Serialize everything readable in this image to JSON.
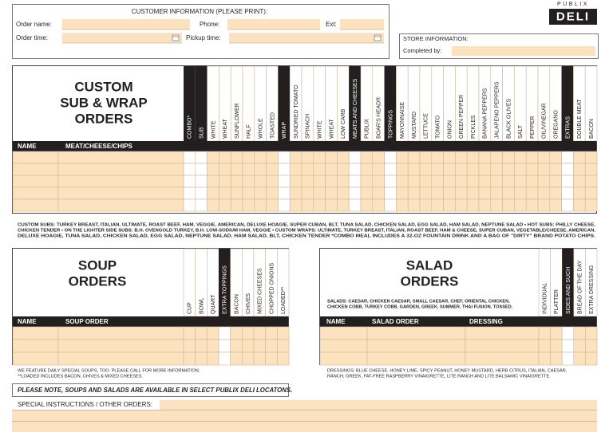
{
  "customer": {
    "title": "CUSTOMER INFORMATION (PLEASE PRINT):",
    "fields": [
      "Order name:",
      "Phone:",
      "Ext:",
      "Order time:",
      "Pickup time:"
    ]
  },
  "logo": {
    "brand": "PUBLIX",
    "name": "DELI"
  },
  "store": {
    "title": "STORE INFORMATION:",
    "completed_by": "Completed by:"
  },
  "sub_orders": {
    "title": [
      "CUSTOM",
      "SUB & WRAP",
      "ORDERS"
    ],
    "row_headers": [
      "NAME",
      "MEAT/CHEESE/CHIPS"
    ],
    "columns": [
      {
        "label": "COMBO*",
        "style": "dark"
      },
      {
        "label": "SUB",
        "style": "dark"
      },
      {
        "label": "WHITE",
        "style": "light"
      },
      {
        "label": "WHEAT",
        "style": "light"
      },
      {
        "label": "SUNFLOWER",
        "style": "light"
      },
      {
        "label": "HALF",
        "style": "light"
      },
      {
        "label": "WHOLE",
        "style": "light"
      },
      {
        "label": "TOASTED",
        "style": "light"
      },
      {
        "label": "WRAP",
        "style": "dark"
      },
      {
        "label": "SUNDRIED TOMATO",
        "style": "light"
      },
      {
        "label": "SPINACH",
        "style": "light"
      },
      {
        "label": "WHITE",
        "style": "light"
      },
      {
        "label": "WHEAT",
        "style": "light"
      },
      {
        "label": "LOW CARB",
        "style": "light"
      },
      {
        "label": "MEATS AND CHEESES",
        "style": "dark"
      },
      {
        "label": "PUBLIX",
        "style": "light"
      },
      {
        "label": "BOAR'S HEAD®",
        "style": "light"
      },
      {
        "label": "TOPPINGS",
        "style": "dark"
      },
      {
        "label": "MAYONNAISE",
        "style": "light"
      },
      {
        "label": "MUSTARD",
        "style": "light"
      },
      {
        "label": "LETTUCE",
        "style": "light"
      },
      {
        "label": "TOMATO",
        "style": "light"
      },
      {
        "label": "ONION",
        "style": "light"
      },
      {
        "label": "GREEN PEPPER",
        "style": "light"
      },
      {
        "label": "PICKLES",
        "style": "light"
      },
      {
        "label": "BANANA PEPPERS",
        "style": "light"
      },
      {
        "label": "JALAPENO PEPPERS",
        "style": "light"
      },
      {
        "label": "BLACK OLIVES",
        "style": "light"
      },
      {
        "label": "SALT",
        "style": "light"
      },
      {
        "label": "PEPPER",
        "style": "light"
      },
      {
        "label": "OIL/VINEGAR",
        "style": "light"
      },
      {
        "label": "OREGANO",
        "style": "light"
      },
      {
        "label": "EXTRAS",
        "style": "dark"
      },
      {
        "label": "DOUBLE MEAT",
        "style": "light"
      },
      {
        "label": "BACON",
        "style": "light"
      }
    ],
    "notes": [
      "CUSTOM SUBS: TURKEY BREAST, ITALIAN, ULTIMATE, ROAST BEEF, HAM, VEGGIE, AMERICAN, DELUXE HOAGIE, SUPER CUBAN, BLT, TUNA SALAD, CHICKEN SALAD, EGG SALAD, HAM SALAD, NEPTUNE SALAD • HOT SUBS: PHILLY CHEESE,",
      "CHICKEN TENDER • ON THE LIGHTER SIDE SUBS: B.H. OVENGOLD TURKEY, B.H. LOW-SODIUM HAM, VEGGIE • CUSTOM WRAPS: ULTIMATE, TURKEY BREAST, ITALIAN, ROAST BEEF, HAM & CHEESE, SUPER CUBAN, VEGETABLE/CHEESE, AMERICAN,",
      "DELUXE HOAGIE, TUNA SALAD, CHICKEN SALAD, EGG SALAD, NEPTUNE SALAD, HAM SALAD, BLT, CHICKEN TENDER *COMBO MEAL INCLUDES A 32-OZ FOUNTAIN DRINK AND A BAG OF \"DIRTY\" BRAND POTATO CHIPS."
    ]
  },
  "soup_orders": {
    "title": [
      "SOUP",
      "ORDERS"
    ],
    "row_headers": [
      "NAME",
      "SOUP ORDER"
    ],
    "columns": [
      {
        "label": "CUP",
        "style": "light"
      },
      {
        "label": "BOWL",
        "style": "light"
      },
      {
        "label": "QUART",
        "style": "light"
      },
      {
        "label": "EXTRA TOPPINGS",
        "style": "dark"
      },
      {
        "label": "BACON",
        "style": "light"
      },
      {
        "label": "CHIVES",
        "style": "light"
      },
      {
        "label": "MIXED CHEESES",
        "style": "light"
      },
      {
        "label": "CHOPPED ONIONS",
        "style": "light"
      },
      {
        "label": "LOADED**",
        "style": "light"
      }
    ],
    "notes": [
      "WE FEATURE DAILY SPECIAL SOUPS, TOO. PLEASE CALL FOR MORE INFORMATION.",
      "**LOADED INCLUDES BACON, CHIVES & MIXED CHEESES."
    ]
  },
  "salad_orders": {
    "title": [
      "SALAD",
      "ORDERS"
    ],
    "description": [
      "SALADS: CAESAR, CHICKEN CAESAR, SMALL CAESAR, CHEF, ORIENTAL CHICKEN,",
      "CHICKEN COBB, TURKEY COBB, GARDEN, GREEK, SUMMER, THAI FUSION, TOSSED."
    ],
    "row_headers": [
      "NAME",
      "SALAD ORDER",
      "DRESSING"
    ],
    "columns": [
      {
        "label": "INDIVIDUAL",
        "style": "light"
      },
      {
        "label": "PLATTER",
        "style": "light"
      },
      {
        "label": "SIDES AND SUCH",
        "style": "dark"
      },
      {
        "label": "BREAD OF THE DAY",
        "style": "light"
      },
      {
        "label": "EXTRA DRESSING",
        "style": "light"
      }
    ],
    "notes": [
      "DRESSINGS: BLUE CHEESE, HONEY LIME, SPICY PEANUT, HONEY MUSTARD, HERB CITRUS, ITALIAN, CAESAR,",
      "RANCH, GREEK, FAT-FREE RASPBERRY VINAIGRETTE, LITE RANCH AND LITE BALSAMIC VINAIGRETTE."
    ]
  },
  "availability_note": "PLEASE NOTE, SOUPS AND SALADS ARE AVAILABLE IN SELECT PUBLIX DELI LOCATONS.",
  "special_instructions": "SPECIAL INSTRUCTIONS / OTHER ORDERS:"
}
